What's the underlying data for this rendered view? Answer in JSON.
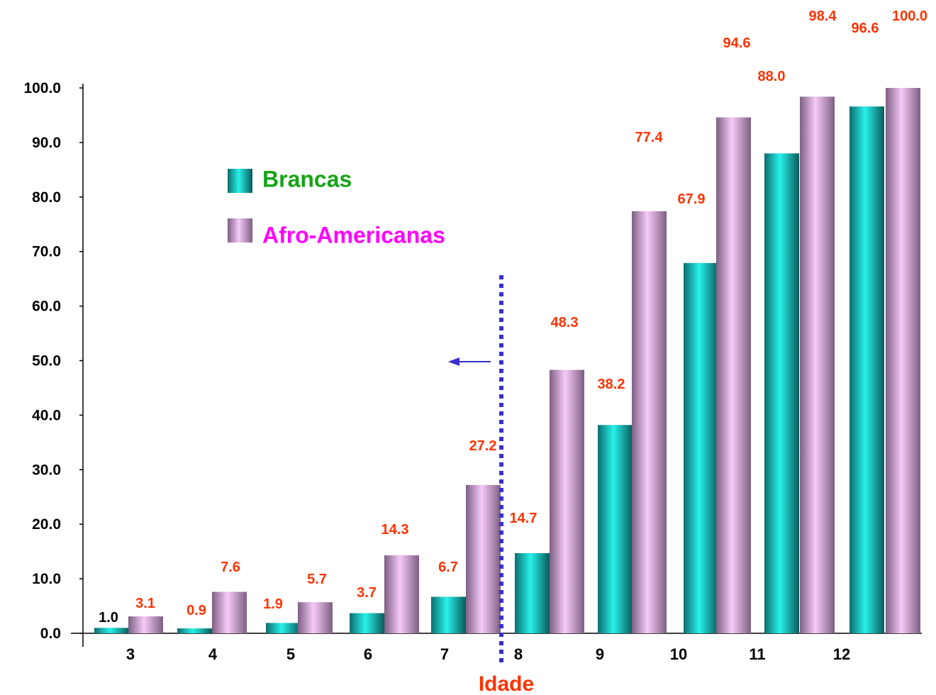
{
  "chart_data": {
    "type": "bar",
    "title": "",
    "xlabel": "Idade",
    "ylabel": "",
    "ylim": [
      0,
      100
    ],
    "yticks": [
      "0.0",
      "10.0",
      "20.0",
      "30.0",
      "40.0",
      "50.0",
      "60.0",
      "70.0",
      "80.0",
      "90.0",
      "100.0"
    ],
    "x_tick_labels": [
      "3",
      "4",
      "5",
      "6",
      "7",
      "8",
      "9",
      "10",
      "11",
      "12"
    ],
    "series": [
      {
        "name": "Brancas",
        "values": [
          1.0,
          0.9,
          1.9,
          3.7,
          6.7,
          14.7,
          38.2,
          67.9,
          88.0,
          96.6
        ],
        "labels": [
          "1.0",
          "0.9",
          "1.9",
          "3.7",
          "6.7",
          "14.7",
          "38.2",
          "67.9",
          "88.0",
          "96.6"
        ]
      },
      {
        "name": "Afro-Americanas",
        "values": [
          3.1,
          7.6,
          5.7,
          14.3,
          27.2,
          48.3,
          77.4,
          94.6,
          98.4,
          100.0
        ],
        "labels": [
          "3.1",
          "7.6",
          "5.7",
          "14.3",
          "27.2",
          "48.3",
          "77.4",
          "94.6",
          "98.4",
          "100.0"
        ]
      }
    ],
    "legend_position": "upper-left",
    "grid": false,
    "annotations": {
      "cutoff_line": "dotted vertical line between 7 and 8 with leftward arrow"
    },
    "colors": {
      "brancas": "#1fc9c4",
      "afro": "#e2b7e6",
      "label_red": "#ff3300",
      "label_black": "#000000",
      "legend_brancas": "#16a316",
      "legend_afro": "#ff00ff",
      "xlabel": "#ff3300",
      "cutoff": "#3a2fd0"
    }
  }
}
